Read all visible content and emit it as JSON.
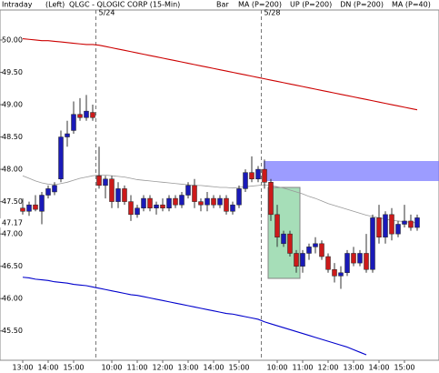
{
  "chart_data": {
    "type": "candlestick",
    "header": {
      "mode": "Intraday",
      "axis_side": "(Left)",
      "title": "QLGC - QLOGIC CORP (15-Min)",
      "style": "Bar"
    },
    "date_labels": [
      "5/24",
      "5/28"
    ],
    "last_price": 47.17,
    "categories": [
      "13:00",
      null,
      null,
      null,
      "14:00",
      null,
      null,
      null,
      "15:00",
      null,
      null,
      null,
      null,
      null,
      "10:00",
      null,
      null,
      null,
      "11:00",
      null,
      null,
      null,
      "12:00",
      null,
      null,
      null,
      "13:00",
      null,
      null,
      null,
      "14:00",
      null,
      null,
      null,
      "15:00",
      null,
      null,
      null,
      null,
      null,
      "10:00",
      null,
      null,
      null,
      "11:00",
      null,
      null,
      null,
      "12:00",
      null,
      null,
      null,
      "13:00",
      null,
      null,
      null,
      "14:00",
      null,
      null,
      null,
      "15:00",
      null,
      null
    ],
    "ohlc": {
      "up_color": "#1a1ab8",
      "down_color": "#cc1a1a",
      "open": [
        47.4,
        47.35,
        47.45,
        47.35,
        47.6,
        47.65,
        47.85,
        48.5,
        48.6,
        48.85,
        48.8,
        48.88,
        47.9,
        47.75,
        47.85,
        47.5,
        47.7,
        47.5,
        47.3,
        47.4,
        47.55,
        47.4,
        47.45,
        47.4,
        47.55,
        47.45,
        47.6,
        47.75,
        47.5,
        47.45,
        47.55,
        47.45,
        47.55,
        47.35,
        47.45,
        47.7,
        47.95,
        47.85,
        48.0,
        47.8,
        47.3,
        46.85,
        47.0,
        46.7,
        46.5,
        46.7,
        46.8,
        46.85,
        46.65,
        46.45,
        46.35,
        46.4,
        46.7,
        46.55,
        46.7,
        46.45,
        47.25,
        46.95,
        47.3,
        47.0,
        47.15,
        47.2,
        47.1
      ],
      "high": [
        47.55,
        47.5,
        47.6,
        47.65,
        47.75,
        47.8,
        48.6,
        48.75,
        49.05,
        49.1,
        49.15,
        49.0,
        48.35,
        47.9,
        47.9,
        47.8,
        47.75,
        47.6,
        47.45,
        47.6,
        47.6,
        47.5,
        47.55,
        47.6,
        47.6,
        47.65,
        47.8,
        47.85,
        47.55,
        47.65,
        47.6,
        47.6,
        47.6,
        47.5,
        47.75,
        48.0,
        48.2,
        48.05,
        48.15,
        47.85,
        47.45,
        47.05,
        47.05,
        46.75,
        46.75,
        46.85,
        46.95,
        46.9,
        46.7,
        46.55,
        46.5,
        46.75,
        46.8,
        46.75,
        47.0,
        47.3,
        47.45,
        47.35,
        47.4,
        47.2,
        47.45,
        47.3,
        47.3
      ],
      "low": [
        47.3,
        47.28,
        47.35,
        47.15,
        47.55,
        47.6,
        47.8,
        48.35,
        48.55,
        48.75,
        48.75,
        48.75,
        47.7,
        47.55,
        47.4,
        47.4,
        47.45,
        47.2,
        47.25,
        47.35,
        47.35,
        47.3,
        47.35,
        47.35,
        47.4,
        47.4,
        47.55,
        47.4,
        47.35,
        47.35,
        47.4,
        47.4,
        47.3,
        47.3,
        47.4,
        47.65,
        47.8,
        47.8,
        47.7,
        47.2,
        46.8,
        46.8,
        46.65,
        46.4,
        46.4,
        46.6,
        46.7,
        46.6,
        46.4,
        46.25,
        46.15,
        46.35,
        46.5,
        46.5,
        46.4,
        46.4,
        46.85,
        46.85,
        46.9,
        46.95,
        47.1,
        47.05,
        47.05
      ],
      "close": [
        47.35,
        47.45,
        47.38,
        47.6,
        47.7,
        47.75,
        48.5,
        48.55,
        48.85,
        48.8,
        48.9,
        48.8,
        47.75,
        47.85,
        47.5,
        47.7,
        47.5,
        47.3,
        47.4,
        47.55,
        47.4,
        47.45,
        47.4,
        47.55,
        47.45,
        47.6,
        47.75,
        47.5,
        47.45,
        47.55,
        47.45,
        47.55,
        47.35,
        47.45,
        47.7,
        47.95,
        47.85,
        48.0,
        47.8,
        47.3,
        46.95,
        47.0,
        46.7,
        46.5,
        46.7,
        46.8,
        46.85,
        46.65,
        46.45,
        46.35,
        46.4,
        46.7,
        46.55,
        46.7,
        46.45,
        47.25,
        46.95,
        47.3,
        47.0,
        47.15,
        47.2,
        47.1,
        47.25
      ]
    },
    "series": [
      {
        "name": "MA (P=200)",
        "color": "#cc0000",
        "values": [
          50.02,
          50.01,
          50.0,
          49.99,
          49.99,
          49.98,
          49.97,
          49.96,
          49.95,
          49.94,
          49.93,
          49.93,
          49.92,
          49.9,
          49.88,
          49.86,
          49.84,
          49.82,
          49.8,
          49.78,
          49.76,
          49.74,
          49.72,
          49.7,
          49.68,
          49.66,
          49.64,
          49.62,
          49.6,
          49.58,
          49.56,
          49.54,
          49.52,
          49.5,
          49.48,
          49.46,
          49.44,
          49.42,
          49.4,
          49.38,
          49.36,
          49.34,
          49.32,
          49.3,
          49.28,
          49.26,
          49.24,
          49.22,
          49.2,
          49.18,
          49.16,
          49.14,
          49.12,
          49.1,
          49.08,
          49.06,
          49.04,
          49.02,
          49.0,
          48.98,
          48.96,
          48.94,
          48.92
        ]
      },
      {
        "name": "UP (P=200)",
        "color": "#00aa00",
        "values": [
          null,
          null,
          null,
          null,
          null,
          null,
          null,
          null,
          null,
          null,
          null,
          null,
          null,
          null,
          null,
          null,
          null,
          null,
          null,
          null,
          null,
          null,
          null,
          null,
          null,
          null,
          null,
          null,
          null,
          null,
          null,
          null,
          null,
          null,
          null,
          null,
          null,
          null,
          null,
          null,
          null,
          null,
          null,
          null,
          null,
          null,
          null,
          null,
          null,
          null,
          null,
          null,
          null,
          null,
          null,
          null,
          null,
          null,
          null,
          null,
          null,
          null,
          null
        ]
      },
      {
        "name": "DN (P=200)",
        "color": "#0000cc",
        "values": [
          46.33,
          46.32,
          46.3,
          46.29,
          46.28,
          46.26,
          46.25,
          46.24,
          46.22,
          46.21,
          46.2,
          46.18,
          46.16,
          46.14,
          46.12,
          46.1,
          46.08,
          46.06,
          46.05,
          46.03,
          46.01,
          45.99,
          45.97,
          45.95,
          45.93,
          45.91,
          45.89,
          45.87,
          45.85,
          45.83,
          45.81,
          45.79,
          45.77,
          45.76,
          45.74,
          45.72,
          45.7,
          45.68,
          45.64,
          45.61,
          45.58,
          45.55,
          45.52,
          45.49,
          45.46,
          45.43,
          45.4,
          45.37,
          45.34,
          45.31,
          45.28,
          45.25,
          45.21,
          45.17,
          45.13,
          null,
          null,
          null,
          null,
          null,
          null,
          null,
          null
        ]
      },
      {
        "name": "MA (P=40)",
        "color": "#999999",
        "values": [
          47.9,
          47.86,
          47.82,
          47.79,
          47.77,
          47.76,
          47.78,
          47.8,
          47.83,
          47.86,
          47.88,
          47.9,
          47.91,
          47.91,
          47.9,
          47.89,
          47.88,
          47.86,
          47.84,
          47.83,
          47.82,
          47.81,
          47.8,
          47.79,
          47.78,
          47.77,
          47.76,
          47.75,
          47.75,
          47.74,
          47.73,
          47.72,
          47.72,
          47.71,
          47.72,
          47.73,
          47.74,
          47.75,
          47.76,
          47.75,
          47.73,
          47.71,
          47.68,
          47.65,
          47.62,
          47.58,
          47.55,
          47.51,
          47.47,
          47.44,
          47.41,
          47.38,
          47.35,
          47.32,
          47.29,
          47.27,
          47.25,
          47.23,
          47.21,
          47.2,
          47.19,
          47.18,
          47.17
        ]
      }
    ],
    "ylim": [
      45.06,
      50.45
    ],
    "yticks": [
      {
        "value": 45.5,
        "label": "45.50"
      },
      {
        "value": 46,
        "label": "46.00"
      },
      {
        "value": 46.5,
        "label": "46.50"
      },
      {
        "value": 47,
        "label": "47.00"
      },
      {
        "value": 47.5,
        "label": "47.50"
      },
      {
        "value": 48,
        "label": "48.00"
      },
      {
        "value": 48.5,
        "label": "48.50"
      },
      {
        "value": 49,
        "label": "49.00"
      },
      {
        "value": 49.5,
        "label": "49.50"
      },
      {
        "value": 50,
        "label": "50.00"
      }
    ]
  }
}
